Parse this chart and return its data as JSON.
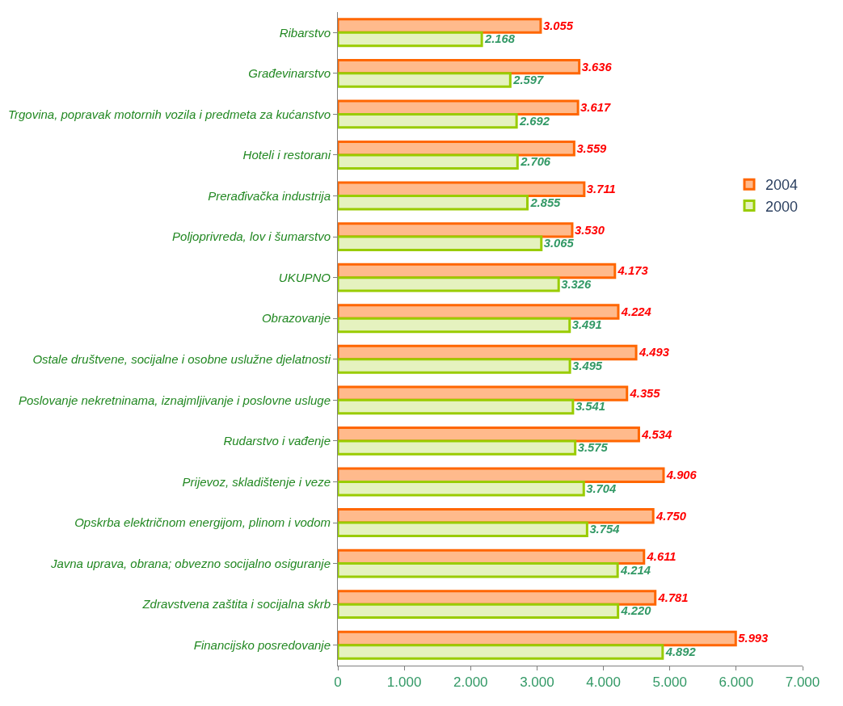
{
  "chart_data": {
    "type": "bar",
    "orientation": "horizontal",
    "categories": [
      "Ribarstvo",
      "Građevinarstvo",
      "Trgovina, popravak motornih vozila i predmeta za kućanstvo",
      "Hoteli i restorani",
      "Prerađivačka industrija",
      "Poljoprivreda, lov i šumarstvo",
      "UKUPNO",
      "Obrazovanje",
      "Ostale društvene, socijalne i osobne uslužne djelatnosti",
      "Poslovanje nekretninama, iznajmljivanje i poslovne usluge",
      "Rudarstvo i vađenje",
      "Prijevoz, skladištenje i veze",
      "Opskrba električnom energijom, plinom i vodom",
      "Javna uprava, obrana; obvezno socijalno osiguranje",
      "Zdravstvena zaštita i socijalna skrb",
      "Financijsko posredovanje"
    ],
    "series": [
      {
        "name": "2004",
        "color": "#ff6600",
        "values": [
          3055,
          3636,
          3617,
          3559,
          3711,
          3530,
          4173,
          4224,
          4493,
          4355,
          4534,
          4906,
          4750,
          4611,
          4781,
          5993
        ],
        "value_labels": [
          "3.055",
          "3.636",
          "3.617",
          "3.559",
          "3.711",
          "3.530",
          "4.173",
          "4.224",
          "4.493",
          "4.355",
          "4.534",
          "4.906",
          "4.750",
          "4.611",
          "4.781",
          "5.993"
        ]
      },
      {
        "name": "2000",
        "color": "#99cc00",
        "values": [
          2168,
          2597,
          2692,
          2706,
          2855,
          3065,
          3326,
          3491,
          3495,
          3541,
          3575,
          3704,
          3754,
          4214,
          4220,
          4892
        ],
        "value_labels": [
          "2.168",
          "2.597",
          "2.692",
          "2.706",
          "2.855",
          "3.065",
          "3.326",
          "3.491",
          "3.495",
          "3.541",
          "3.575",
          "3.704",
          "3.754",
          "4.214",
          "4.220",
          "4.892"
        ]
      }
    ],
    "xlim": [
      0,
      7000
    ],
    "xticks": [
      {
        "value": 0,
        "label": "0"
      },
      {
        "value": 1000,
        "label": "1.000"
      },
      {
        "value": 2000,
        "label": "2.000"
      },
      {
        "value": 3000,
        "label": "3.000"
      },
      {
        "value": 4000,
        "label": "4.000"
      },
      {
        "value": 5000,
        "label": "5.000"
      },
      {
        "value": 6000,
        "label": "6.000"
      },
      {
        "value": 7000,
        "label": "7.000"
      }
    ],
    "legend": "right"
  }
}
